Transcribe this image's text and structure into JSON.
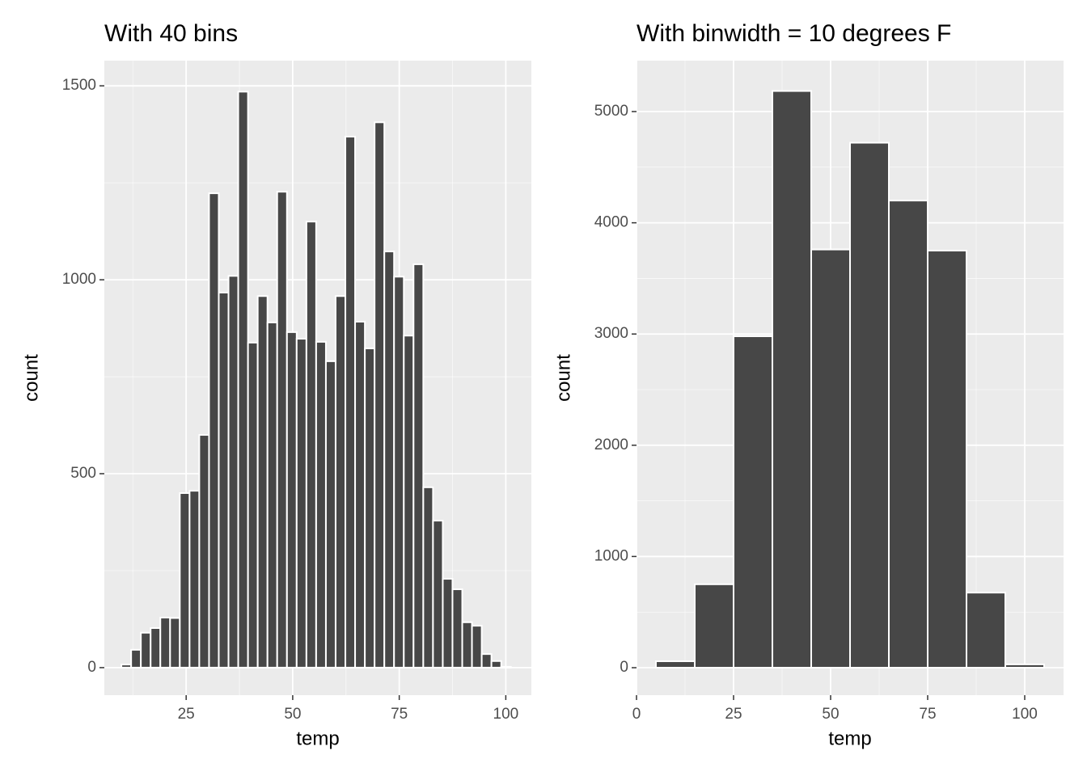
{
  "chart_data": [
    {
      "type": "histogram",
      "title": "With 40 bins",
      "x_label": "temp",
      "y_label": "count",
      "bins": [
        9.8,
        12.09,
        14.37,
        16.66,
        18.94,
        21.23,
        23.51,
        25.8,
        28.08,
        30.37,
        32.65,
        34.94,
        37.22,
        39.51,
        41.79,
        44.08,
        46.36,
        48.65,
        50.93,
        53.22,
        55.5,
        57.79,
        60.07,
        62.36,
        64.64,
        66.93,
        69.21,
        71.5,
        73.78,
        76.07,
        78.35,
        80.64,
        82.92,
        85.21,
        87.49,
        89.78,
        92.06,
        94.35,
        96.63,
        98.92,
        101.2
      ],
      "counts": [
        8,
        46,
        90,
        102,
        129,
        128,
        450,
        456,
        600,
        1223,
        967,
        1010,
        1485,
        838,
        958,
        890,
        1227,
        865,
        848,
        1150,
        840,
        790,
        958,
        1369,
        892,
        823,
        1406,
        1073,
        1008,
        856,
        1040,
        465,
        379,
        229,
        202,
        117,
        108,
        35,
        17,
        2
      ],
      "color": "#474747",
      "edge_color": "#ffffff",
      "xlim": [
        5.8,
        106
      ],
      "xticks": [
        25,
        50,
        75,
        100
      ],
      "xminor": [
        12.5,
        37.5,
        62.5,
        87.5
      ],
      "ylim": [
        -71,
        1565
      ],
      "yticks": [
        0,
        500,
        1000,
        1500
      ],
      "yminor": [
        250,
        750,
        1250
      ],
      "grid": true
    },
    {
      "type": "histogram",
      "title": "With binwidth = 10 degrees F",
      "x_label": "temp",
      "y_label": "count",
      "bins": [
        5,
        15,
        25,
        35,
        45,
        55,
        65,
        75,
        85,
        95,
        105
      ],
      "counts": [
        58,
        750,
        2980,
        5185,
        3760,
        4720,
        4200,
        3750,
        675,
        30
      ],
      "color": "#474747",
      "edge_color": "#ffffff",
      "xlim": [
        0,
        110
      ],
      "xticks": [
        0,
        25,
        50,
        75,
        100
      ],
      "xminor": [
        12.5,
        37.5,
        62.5,
        87.5
      ],
      "ylim": [
        -247,
        5458
      ],
      "yticks": [
        0,
        1000,
        2000,
        3000,
        4000,
        5000
      ],
      "yminor": [
        500,
        1500,
        2500,
        3500,
        4500
      ],
      "grid": true
    }
  ]
}
